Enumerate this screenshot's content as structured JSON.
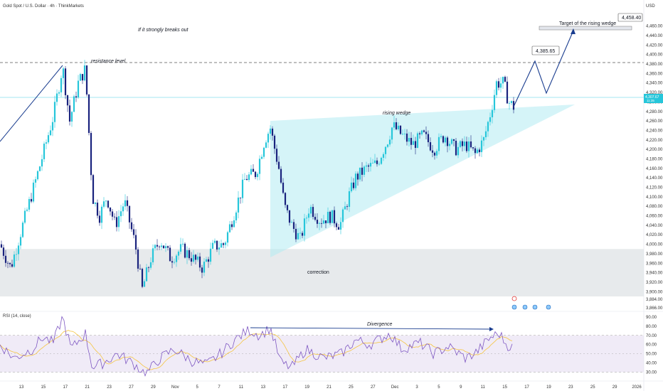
{
  "header": {
    "symbol_title": "Gold Spot / U.S. Dollar · 4h · ThinkMarkets",
    "currency": "USD"
  },
  "price_axis": {
    "ticks": [
      "4,460.00",
      "4,440.00",
      "4,420.00",
      "4,400.00",
      "4,380.00",
      "4,360.00",
      "4,340.00",
      "4,320.00",
      "4,300.00",
      "4,280.00",
      "4,260.00",
      "4,240.00",
      "4,220.00",
      "4,200.00",
      "4,180.00",
      "4,160.00",
      "4,140.00",
      "4,120.00",
      "4,100.00",
      "4,080.00",
      "4,060.00",
      "4,040.00",
      "4,020.00",
      "4,000.00",
      "3,980.00",
      "3,960.00",
      "3,940.00",
      "3,920.00",
      "3,900.00",
      "3,884.00",
      "3,866.00"
    ],
    "current_price_label": "4,307.67",
    "current_price_sub": "11:35"
  },
  "rsi_panel": {
    "label": "RSI (14, close)",
    "ticks": [
      "90.00",
      "80.00",
      "70.00",
      "60.00",
      "50.00",
      "40.00",
      "30.00"
    ]
  },
  "time_axis": {
    "ticks": [
      "13",
      "15",
      "17",
      "21",
      "23",
      "27",
      "29",
      "Nov",
      "5",
      "7",
      "11",
      "13",
      "17",
      "19",
      "21",
      "25",
      "27",
      "Dec",
      "3",
      "5",
      "9",
      "11",
      "15",
      "17",
      "19",
      "23",
      "25",
      "29",
      "2026"
    ]
  },
  "annotations": {
    "breakout_note": "If it strongly breaks out",
    "resistance": "resistance level",
    "wedge": "rising wedge",
    "correction": "correction",
    "target_label": "Target of the rising wedge",
    "target_price": "4,458.40",
    "mid_target_price": "4,385.65",
    "divergence": "Divergence"
  },
  "colors": {
    "up_candle": "#26c6da",
    "down_candle": "#1a237e",
    "wedge_fill": "#b2ebf2",
    "correction_zone": "#dfe3e6",
    "rsi_band": "#ede7f6",
    "rsi_line": "#7e57c2",
    "rsi_ma": "#f5c542",
    "projection_line": "#1a3d8f"
  },
  "chart_data": {
    "type": "candlestick",
    "title": "Gold Spot / U.S. Dollar · 4h · ThinkMarkets",
    "price_range": [
      3866,
      4470
    ],
    "resistance_price": 4380,
    "current_price": 4307.67,
    "targets": [
      4385.65,
      4458.4
    ],
    "correction_zone": [
      3890,
      3990
    ],
    "rsi_range": [
      25,
      93
    ],
    "rsi_levels": [
      30,
      50,
      70
    ]
  }
}
